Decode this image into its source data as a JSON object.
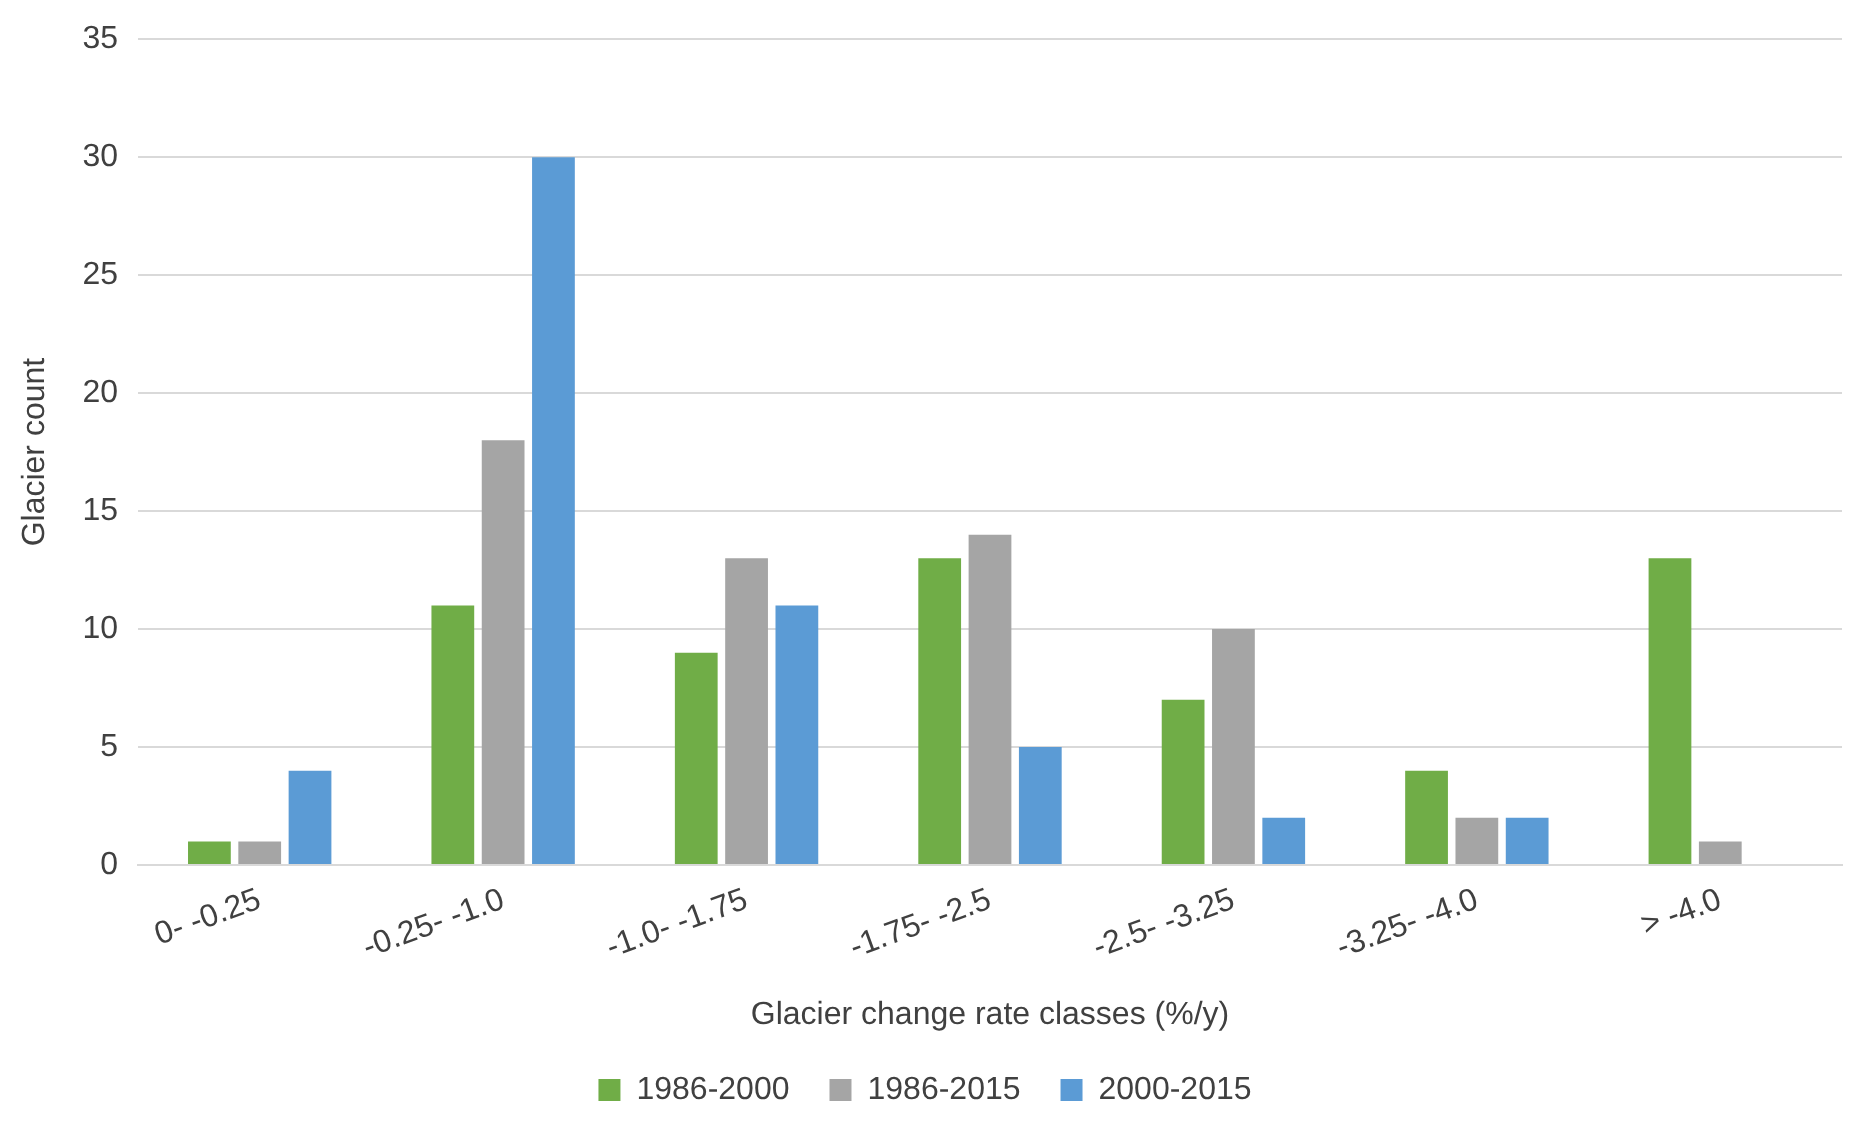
{
  "chart_data": {
    "type": "bar",
    "xlabel": "Glacier change rate classes (%/y)",
    "ylabel": "Glacier count",
    "categories": [
      "0- -0.25",
      "-0.25- -1.0",
      "-1.0- -1.75",
      "-1.75- -2.5",
      "-2.5- -3.25",
      "-3.25- -4.0",
      "> -4.0"
    ],
    "series": [
      {
        "name": "1986-2000",
        "color": "#70ad47",
        "values": [
          1,
          11,
          9,
          13,
          7,
          4,
          13
        ]
      },
      {
        "name": "1986-2015",
        "color": "#a5a5a5",
        "values": [
          1,
          18,
          13,
          14,
          10,
          2,
          1
        ]
      },
      {
        "name": "2000-2015",
        "color": "#5b9bd5",
        "values": [
          4,
          30,
          11,
          5,
          2,
          2,
          0
        ]
      }
    ],
    "ylim": [
      0,
      35
    ],
    "yticks": [
      0,
      5,
      10,
      15,
      20,
      25,
      30,
      35
    ],
    "grid": "y",
    "legend": "bottom"
  }
}
